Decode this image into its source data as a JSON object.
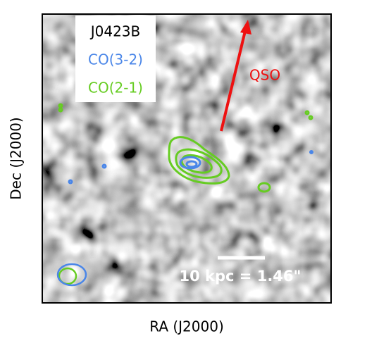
{
  "figure": {
    "legend": {
      "title": "J0423B",
      "entries": [
        {
          "label": "CO(3-2)",
          "color": "#4a86e8"
        },
        {
          "label": "CO(2-1)",
          "color": "#66cc22"
        }
      ]
    },
    "annotation": {
      "label": "QSO",
      "color": "#ee1111"
    },
    "scale_bar": "10 kpc = 1.46\"",
    "x_label": "RA (J2000)",
    "y_label": "Dec (J2000)"
  }
}
